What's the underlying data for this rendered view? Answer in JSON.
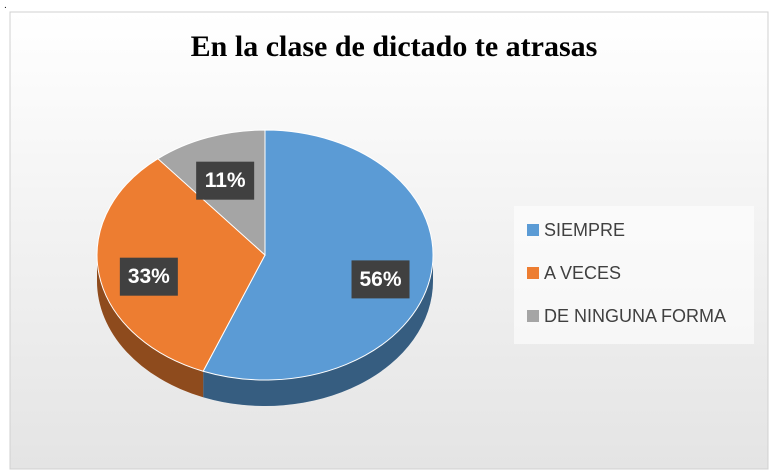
{
  "chart_data": {
    "type": "pie",
    "title": "En la clase de dictado te atrasas",
    "categories": [
      "SIEMPRE",
      "A VECES",
      "DE NINGUNA FORMA"
    ],
    "values": [
      56,
      33,
      11
    ],
    "value_labels": [
      "56%",
      "33%",
      "11%"
    ],
    "colors": [
      "#5b9bd5",
      "#ed7d31",
      "#a5a5a5"
    ],
    "legend": "right"
  }
}
